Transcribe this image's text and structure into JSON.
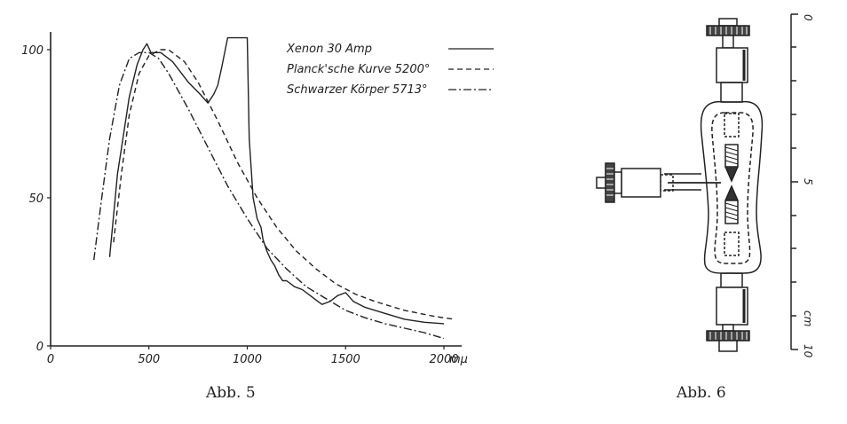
{
  "figure5": {
    "caption": "Abb. 5",
    "chart_data": {
      "type": "line",
      "x_unit": "mμ",
      "x_ticks": [
        "0",
        "500",
        "1000",
        "1500",
        "2000"
      ],
      "y_ticks": [
        "0",
        "50",
        "100"
      ],
      "xlim": [
        0,
        2150
      ],
      "ylim": [
        0,
        104
      ],
      "legend_position": "top-right",
      "series": [
        {
          "name": "Xenon 30 Amp",
          "style": "solid",
          "x": [
            300,
            340,
            400,
            440,
            470,
            490,
            510,
            560,
            620,
            700,
            760,
            800,
            830,
            850,
            870,
            900,
            940,
            980,
            1000,
            1010,
            1030,
            1050,
            1070,
            1080,
            1100,
            1120,
            1140,
            1160,
            1180,
            1200,
            1240,
            1280,
            1320,
            1360,
            1380,
            1420,
            1460,
            1500,
            1540,
            1600,
            1700,
            1800,
            1900,
            2000
          ],
          "y": [
            30,
            58,
            84,
            95,
            100,
            102,
            99,
            99,
            96,
            89,
            85,
            82,
            85,
            88,
            94,
            104,
            104,
            104,
            104,
            70,
            50,
            43,
            40,
            36,
            32,
            29,
            27,
            24,
            22,
            22,
            20,
            19,
            17,
            15,
            14,
            15,
            17,
            18,
            15,
            13,
            11,
            9,
            8,
            7.5
          ]
        },
        {
          "name": "Planck'sche Kurve 5200°",
          "style": "dashed",
          "x": [
            320,
            360,
            400,
            450,
            500,
            560,
            600,
            680,
            750,
            850,
            950,
            1050,
            1150,
            1250,
            1350,
            1450,
            1550,
            1650,
            1800,
            1950,
            2050
          ],
          "y": [
            35,
            58,
            78,
            92,
            98,
            100,
            100,
            96,
            89,
            76,
            62,
            50,
            40,
            32,
            26,
            21,
            17.5,
            15,
            12,
            10,
            9
          ]
        },
        {
          "name": "Schwarzer Körper 5713°",
          "style": "dashdot",
          "x": [
            220,
            260,
            300,
            350,
            400,
            450,
            500,
            550,
            600,
            700,
            800,
            900,
            1000,
            1100,
            1200,
            1300,
            1400,
            1500,
            1600,
            1700,
            1800,
            1900,
            2000
          ],
          "y": [
            29,
            50,
            70,
            88,
            97,
            99,
            99,
            97,
            92,
            80,
            67,
            54,
            43,
            33,
            26,
            20,
            16,
            12,
            9.5,
            7.5,
            6,
            4.5,
            2.5
          ]
        }
      ]
    }
  },
  "figure6": {
    "caption": "Abb. 6",
    "scale_ticks": [
      "0",
      "5",
      "10"
    ],
    "scale_unit": "cm"
  }
}
